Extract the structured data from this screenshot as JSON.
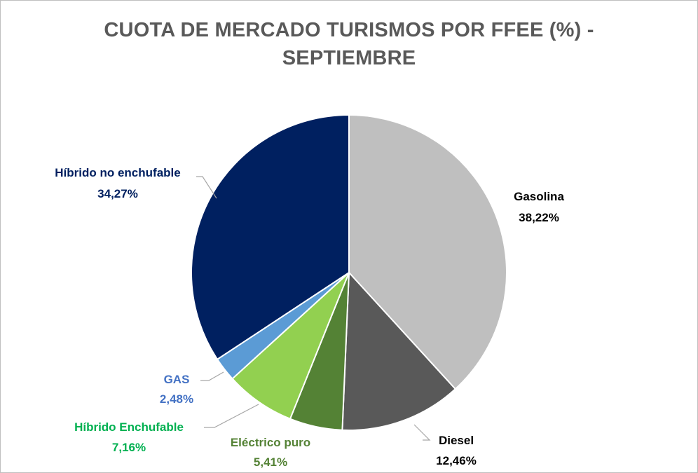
{
  "chart_data": {
    "type": "pie",
    "title_line1": "CUOTA DE MERCADO TURISMOS POR FFEE (%) -",
    "title_line2": "SEPTIEMBRE",
    "slices": [
      {
        "name": "Gasolina",
        "value": 38.22,
        "label": "38,22%",
        "color": "#BFBFBF",
        "text_color": "#000000"
      },
      {
        "name": "Diesel",
        "value": 12.46,
        "label": "12,46%",
        "color": "#595959",
        "text_color": "#000000"
      },
      {
        "name": "Eléctrico puro",
        "value": 5.41,
        "label": "5,41%",
        "color": "#548235",
        "text_color": "#548235"
      },
      {
        "name": "Híbrido Enchufable",
        "value": 7.16,
        "label": "7,16%",
        "color": "#92D050",
        "text_color": "#00B050"
      },
      {
        "name": "GAS",
        "value": 2.48,
        "label": "2,48%",
        "color": "#5B9BD5",
        "text_color": "#4472C4"
      },
      {
        "name": "Híbrido no enchufable",
        "value": 34.27,
        "label": "34,27%",
        "color": "#002060",
        "text_color": "#002060"
      }
    ]
  }
}
